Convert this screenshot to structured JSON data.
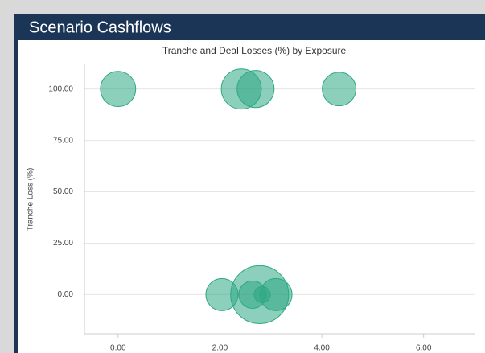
{
  "header": {
    "title": "Scenario Cashflows"
  },
  "chart_data": {
    "type": "bubble",
    "title": "Tranche and Deal Losses (%) by Exposure",
    "ylabel": "Tranche Loss (%)",
    "x": [
      0.0,
      2.42,
      2.7,
      4.34,
      2.04,
      2.64,
      2.78,
      2.83,
      3.1
    ],
    "values": [
      100,
      100,
      100,
      100,
      0,
      0,
      0,
      0,
      0
    ],
    "sizes": [
      48,
      62,
      53,
      44,
      40,
      29,
      130,
      10,
      40
    ],
    "color": "#2ea883",
    "xlim": [
      -0.66,
      7.0
    ],
    "ylim": [
      -19,
      112
    ],
    "xticks": [
      {
        "value": 0,
        "label": "0.00"
      },
      {
        "value": 2,
        "label": "2.00"
      },
      {
        "value": 4,
        "label": "4.00"
      },
      {
        "value": 6,
        "label": "6.00"
      }
    ],
    "yticks": [
      {
        "value": 0,
        "label": "0.00"
      },
      {
        "value": 25,
        "label": "25.00"
      },
      {
        "value": 50,
        "label": "50.00"
      },
      {
        "value": 75,
        "label": "75.00"
      },
      {
        "value": 100,
        "label": "100.00"
      }
    ],
    "grid": true
  }
}
